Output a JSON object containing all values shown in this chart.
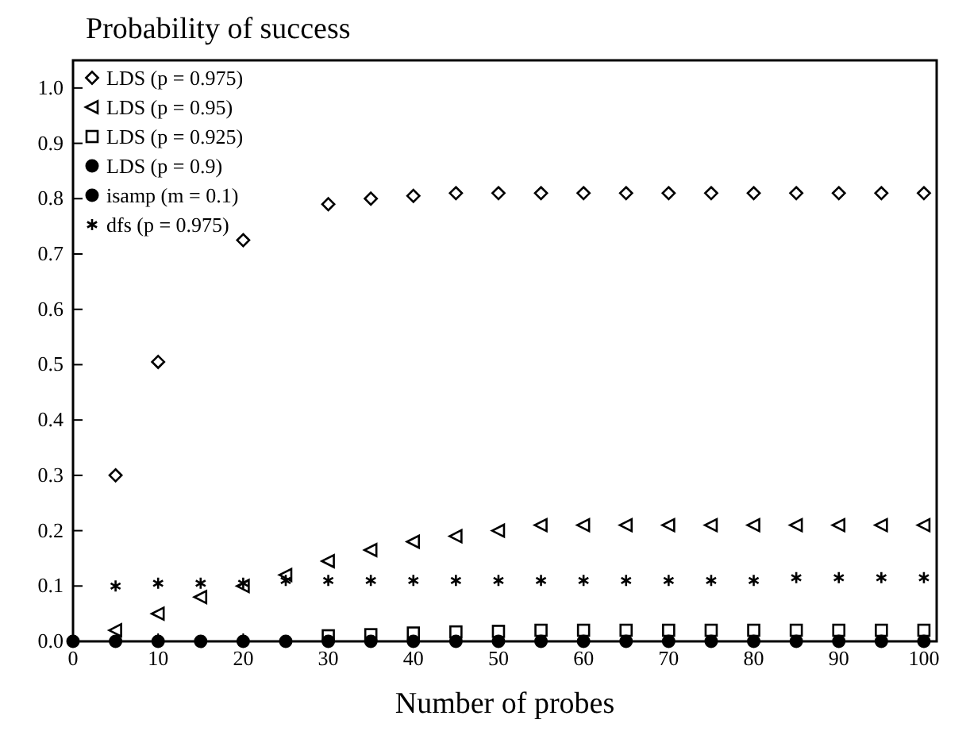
{
  "chart_data": {
    "type": "scatter",
    "ylabel": "Probability of success",
    "xlabel": "Number of probes",
    "x": [
      5,
      10,
      15,
      20,
      25,
      30,
      35,
      40,
      45,
      50,
      55,
      60,
      65,
      70,
      75,
      80,
      85,
      90,
      95,
      100
    ],
    "xlim": [
      0,
      101.5
    ],
    "ylim": [
      0,
      1.05
    ],
    "xticks": [
      0,
      10,
      20,
      30,
      40,
      50,
      60,
      70,
      80,
      90,
      100
    ],
    "yticks": [
      {
        "value": 0,
        "label": "0.0"
      },
      0.1,
      0.2,
      0.3,
      0.4,
      0.5,
      0.6,
      0.7,
      0.8,
      0.9,
      {
        "value": 1,
        "label": "1.0"
      }
    ],
    "grid": false,
    "legend": "top left",
    "series": [
      {
        "name": "LDS (p = 0.975)",
        "color": "#000000",
        "marker": "diamond",
        "values": [
          0.3,
          0.505,
          null,
          0.725,
          null,
          0.79,
          0.8,
          0.805,
          0.81,
          0.81,
          0.81,
          0.81,
          0.81,
          0.81,
          0.81,
          0.81,
          0.81,
          0.81,
          0.81,
          0.81
        ]
      },
      {
        "name": "LDS (p = 0.95)",
        "color": "#000000",
        "marker": "triangle",
        "values": [
          0.02,
          0.05,
          0.08,
          0.1,
          0.12,
          0.145,
          0.165,
          0.18,
          0.19,
          0.2,
          0.21,
          0.21,
          0.21,
          0.21,
          0.21,
          0.21,
          0.21,
          0.21,
          0.21,
          0.21
        ]
      },
      {
        "name": "LDS (p = 0.925)",
        "color": "#000000",
        "marker": "square",
        "values": [
          null,
          null,
          null,
          null,
          null,
          0.01,
          0.012,
          0.015,
          0.017,
          0.018,
          0.02,
          0.02,
          0.02,
          0.02,
          0.02,
          0.02,
          0.02,
          0.02,
          0.02,
          0.02
        ]
      },
      {
        "name": "LDS (p = 0.9)",
        "color": "#000000",
        "marker": "circle",
        "values": [
          null,
          null,
          null,
          null,
          null,
          null,
          null,
          null,
          null,
          null,
          null,
          null,
          null,
          null,
          null,
          null,
          null,
          null,
          null,
          null
        ]
      },
      {
        "name": "isamp (m = 0.1)",
        "color": "#000000",
        "marker": "circle",
        "x": [
          0,
          5,
          10,
          15,
          20,
          25,
          30,
          35,
          40,
          45,
          50,
          55,
          60,
          65,
          70,
          75,
          80,
          85,
          90,
          95,
          100
        ],
        "values": [
          0,
          0,
          0,
          0,
          0,
          0,
          0,
          0,
          0,
          0,
          0,
          0,
          0,
          0,
          0,
          0,
          0,
          0,
          0,
          0,
          0
        ]
      },
      {
        "name": "dfs (p = 0.975)",
        "color": "#000000",
        "marker": "cross",
        "values": [
          0.1,
          0.105,
          0.105,
          0.105,
          0.11,
          0.11,
          0.11,
          0.11,
          0.11,
          0.11,
          0.11,
          0.11,
          0.11,
          0.11,
          0.11,
          0.11,
          0.115,
          0.115,
          0.115,
          0.115
        ]
      }
    ]
  }
}
